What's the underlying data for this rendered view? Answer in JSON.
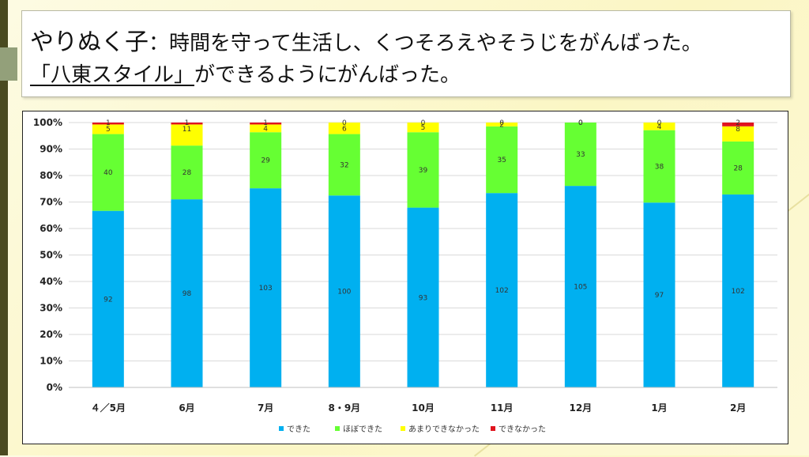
{
  "slide": {
    "title_main": "やりぬく子",
    "title_colon": "：",
    "title_rest": "時間を守って生活し、くつそろえやそうじをがんばった。",
    "subtitle_ul": "「八東スタイル」",
    "subtitle_rest": "ができるようにがんばった。"
  },
  "colors": {
    "dekita": "#00b0f0",
    "hobo": "#66ff33",
    "amari": "#ffff00",
    "dekinakatta": "#e0141e"
  },
  "chart_data": {
    "type": "bar",
    "stacked": "percent",
    "categories": [
      "４／5月",
      "6月",
      "7月",
      "8・9月",
      "10月",
      "11月",
      "12月",
      "1月",
      "2月"
    ],
    "series": [
      {
        "name": "できた",
        "color": "#00b0f0",
        "values": [
          92,
          98,
          103,
          100,
          93,
          102,
          105,
          97,
          102
        ]
      },
      {
        "name": "ほぼできた",
        "color": "#66ff33",
        "values": [
          40,
          28,
          29,
          32,
          39,
          35,
          33,
          38,
          28
        ]
      },
      {
        "name": "あまりできなかった",
        "color": "#ffff00",
        "values": [
          5,
          11,
          4,
          6,
          5,
          2,
          0,
          4,
          8
        ]
      },
      {
        "name": "できなかった",
        "color": "#e0141e",
        "values": [
          1,
          1,
          1,
          0,
          0,
          0,
          0,
          0,
          2
        ]
      }
    ],
    "yticks": [
      "0%",
      "10%",
      "20%",
      "30%",
      "40%",
      "50%",
      "60%",
      "70%",
      "80%",
      "90%",
      "100%"
    ],
    "ylim": [
      0,
      100
    ],
    "grid": true,
    "legend_position": "bottom"
  }
}
